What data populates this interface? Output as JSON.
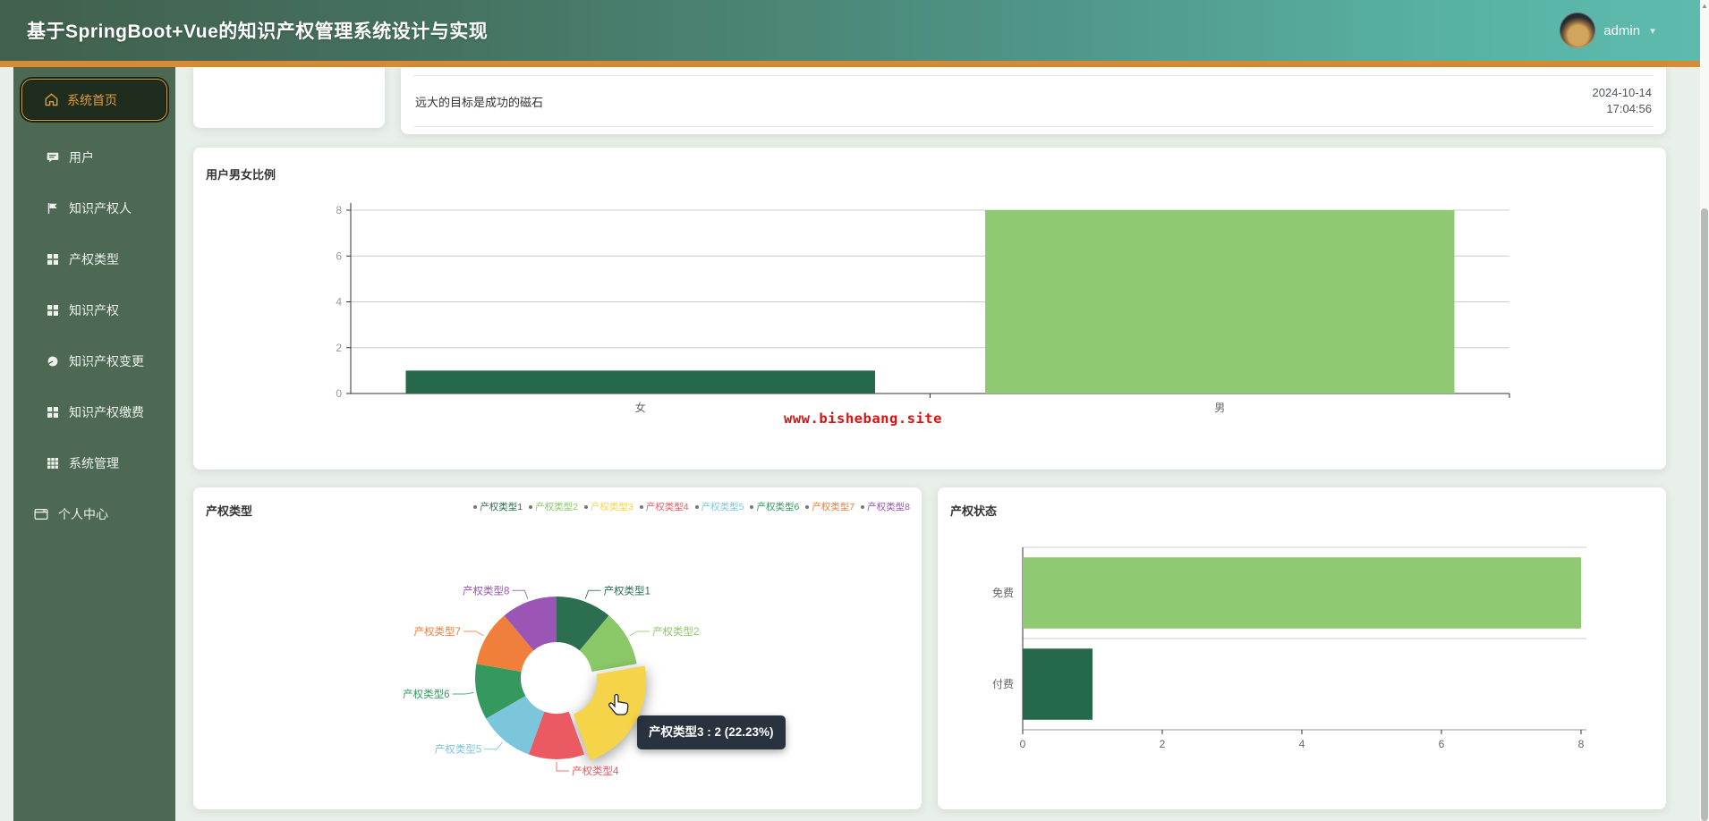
{
  "header": {
    "title": "基于SpringBoot+Vue的知识产权管理系统设计与实现",
    "username": "admin"
  },
  "sidebar": {
    "items": [
      {
        "label": "系统首页",
        "icon": "home-icon",
        "active": true
      },
      {
        "label": "用户",
        "icon": "message-icon"
      },
      {
        "label": "知识产权人",
        "icon": "flag-icon"
      },
      {
        "label": "产权类型",
        "icon": "grid-icon"
      },
      {
        "label": "知识产权",
        "icon": "grid-icon"
      },
      {
        "label": "知识产权变更",
        "icon": "pie-icon"
      },
      {
        "label": "知识产权缴费",
        "icon": "grid-icon"
      },
      {
        "label": "系统管理",
        "icon": "grid9-icon"
      },
      {
        "label": "个人中心",
        "icon": "window-icon"
      }
    ]
  },
  "quote_bar": {
    "quote": "远大的目标是成功的磁石",
    "date": "2024-10-14",
    "time": "17:04:56"
  },
  "watermark": "www.bishebang.site",
  "colors": {
    "header_left": "#41604d",
    "header_right": "#5dbbad",
    "accent_orange": "#d98b33",
    "sidebar_bg": "#4d6853",
    "active_item_text": "#e09a36",
    "watermark_red": "#dd1010",
    "dark_green": "#26684b",
    "light_green": "#8fc972"
  },
  "chart_data": [
    {
      "type": "bar",
      "title": "用户男女比例",
      "categories": [
        "女",
        "男"
      ],
      "values": [
        1,
        8
      ],
      "bar_colors": [
        "#26684b",
        "#8fc972"
      ],
      "ylim": [
        0,
        8
      ],
      "yticks": [
        0,
        2,
        4,
        6,
        8
      ],
      "grid": true,
      "legend_position": "none"
    },
    {
      "type": "pie",
      "title": "产权类型",
      "labels": [
        "产权类型1",
        "产权类型2",
        "产权类型3",
        "产权类型4",
        "产权类型5",
        "产权类型6",
        "产权类型7",
        "产权类型8"
      ],
      "values": [
        1,
        1,
        2,
        1,
        1,
        1,
        1,
        1
      ],
      "colors": [
        "#2b6e50",
        "#8bc968",
        "#f6d44a",
        "#eb5a62",
        "#7cc6dc",
        "#35995f",
        "#f07f3c",
        "#9a55b5"
      ],
      "inner_radius_ratio": 0.44,
      "legend_position": "top",
      "hovered": {
        "index": 2,
        "label": "产权类型3",
        "value": 2,
        "percent": "22.23%",
        "tooltip": "产权类型3 : 2 (22.23%)"
      }
    },
    {
      "type": "bar",
      "orientation": "horizontal",
      "title": "产权状态",
      "categories": [
        "免费",
        "付费"
      ],
      "values": [
        8,
        1
      ],
      "bar_colors": [
        "#8fc972",
        "#26684b"
      ],
      "xlim": [
        0,
        8
      ],
      "xticks": [
        0,
        2,
        4,
        6,
        8
      ],
      "grid": true
    }
  ]
}
